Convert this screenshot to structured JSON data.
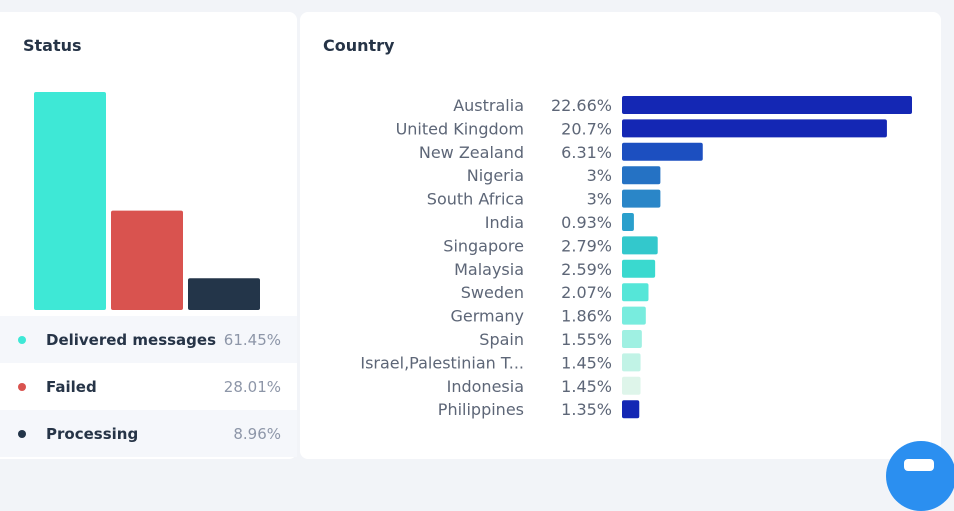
{
  "status_card": {
    "title": "Status",
    "legend": [
      {
        "label": "Delivered messages",
        "value": "61.45%",
        "color": "#3ee8d6"
      },
      {
        "label": "Failed",
        "value": "28.01%",
        "color": "#d9534f"
      },
      {
        "label": "Processing",
        "value": "8.96%",
        "color": "#233549"
      }
    ]
  },
  "country_card": {
    "title": "Country"
  },
  "chart_data": [
    {
      "type": "bar",
      "title": "Status",
      "categories": [
        "Delivered messages",
        "Failed",
        "Processing"
      ],
      "values": [
        61.45,
        28.01,
        8.96
      ],
      "colors": [
        "#3ee8d6",
        "#d9534f",
        "#233549"
      ],
      "ylim": [
        0,
        61.45
      ],
      "grid": false,
      "legend": "bottom"
    },
    {
      "type": "bar",
      "orientation": "horizontal",
      "title": "Country",
      "categories": [
        "Australia",
        "United Kingdom",
        "New Zealand",
        "Nigeria",
        "South Africa",
        "India",
        "Singapore",
        "Malaysia",
        "Sweden",
        "Germany",
        "Spain",
        "Israel,Palestinian T...",
        "Indonesia",
        "Philippines"
      ],
      "value_labels": [
        "22.66%",
        "20.7%",
        "6.31%",
        "3%",
        "3%",
        "0.93%",
        "2.79%",
        "2.59%",
        "2.07%",
        "1.86%",
        "1.55%",
        "1.45%",
        "1.45%",
        "1.35%"
      ],
      "values": [
        22.66,
        20.7,
        6.31,
        3,
        3,
        0.93,
        2.79,
        2.59,
        2.07,
        1.86,
        1.55,
        1.45,
        1.45,
        1.35
      ],
      "colors": [
        "#1427b4",
        "#1427b4",
        "#1c4fc0",
        "#2572c4",
        "#2a86c8",
        "#2a9fcc",
        "#33c8cc",
        "#3ad9cf",
        "#55e6d8",
        "#78ecde",
        "#9ff0e2",
        "#c1f3e6",
        "#def5ea",
        "#1427b4"
      ],
      "xlim": [
        0,
        22.66
      ],
      "grid": false
    }
  ]
}
